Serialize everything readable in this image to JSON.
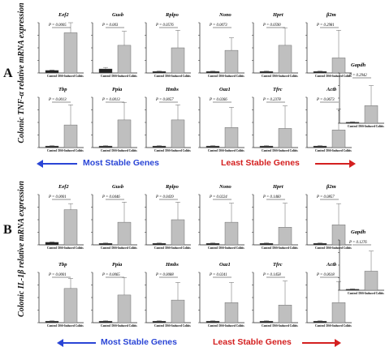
{
  "panels": [
    {
      "letter": "A",
      "ylabel": "Colonic TNF-α relative mRNA expression",
      "legend": {
        "left": "Most Stable Genes",
        "right": "Least Stable Genes"
      }
    },
    {
      "letter": "B",
      "ylabel": "Colonic IL-1β relative mRNA expression",
      "legend": {
        "left": "Most Stable Genes",
        "right": "Least Stable Genes"
      }
    }
  ],
  "chart_data": [
    {
      "type": "bar",
      "panel": "A",
      "gene": "Eef2",
      "p": "P = 0.0005",
      "categories": [
        "Control",
        "DSS-Induced Colitis"
      ],
      "values": [
        0.05,
        0.8
      ],
      "errors": [
        0.01,
        0.22
      ]
    },
    {
      "type": "bar",
      "panel": "A",
      "gene": "Gusb",
      "p": "P = 0.003",
      "categories": [
        "Control",
        "DSS-Induced Colitis"
      ],
      "values": [
        0.08,
        0.55
      ],
      "errors": [
        0.03,
        0.28
      ]
    },
    {
      "type": "bar",
      "panel": "A",
      "gene": "Rplpo",
      "p": "P = 0.0576",
      "categories": [
        "Control",
        "DSS-Induced Colitis"
      ],
      "values": [
        0.03,
        0.5
      ],
      "errors": [
        0.01,
        0.35
      ]
    },
    {
      "type": "bar",
      "panel": "A",
      "gene": "Nono",
      "p": "P = 0.0073",
      "categories": [
        "Control",
        "DSS-Induced Colitis"
      ],
      "values": [
        0.03,
        0.45
      ],
      "errors": [
        0.01,
        0.25
      ]
    },
    {
      "type": "bar",
      "panel": "A",
      "gene": "Hprt",
      "p": "P = 0.0590",
      "categories": [
        "Control",
        "DSS-Induced Colitis"
      ],
      "values": [
        0.03,
        0.55
      ],
      "errors": [
        0.01,
        0.35
      ]
    },
    {
      "type": "bar",
      "panel": "A",
      "gene": "β2m",
      "p": "P = 0.2981",
      "categories": [
        "Control",
        "DSS-Induced Colitis"
      ],
      "values": [
        0.03,
        0.3
      ],
      "errors": [
        0.01,
        0.55
      ]
    },
    {
      "type": "bar",
      "panel": "A",
      "gene": "Tbp",
      "p": "P = 0.0013",
      "categories": [
        "Control",
        "DSS-Induced Colitis"
      ],
      "values": [
        0.03,
        0.45
      ],
      "errors": [
        0.01,
        0.4
      ]
    },
    {
      "type": "bar",
      "panel": "A",
      "gene": "Ppia",
      "p": "P = 0.0013",
      "categories": [
        "Control",
        "DSS-Induced Colitis"
      ],
      "values": [
        0.03,
        0.55
      ],
      "errors": [
        0.01,
        0.35
      ]
    },
    {
      "type": "bar",
      "panel": "A",
      "gene": "Hmbs",
      "p": "P = 0.0057",
      "categories": [
        "Control",
        "DSS-Induced Colitis"
      ],
      "values": [
        0.03,
        0.55
      ],
      "errors": [
        0.01,
        0.3
      ]
    },
    {
      "type": "bar",
      "panel": "A",
      "gene": "Oaz1",
      "p": "P = 0.0266",
      "categories": [
        "Control",
        "DSS-Induced Colitis"
      ],
      "values": [
        0.03,
        0.4
      ],
      "errors": [
        0.01,
        0.4
      ]
    },
    {
      "type": "bar",
      "panel": "A",
      "gene": "Tfrc",
      "p": "P = 0.2378",
      "categories": [
        "Control",
        "DSS-Induced Colitis"
      ],
      "values": [
        0.03,
        0.38
      ],
      "errors": [
        0.01,
        0.45
      ]
    },
    {
      "type": "bar",
      "panel": "A",
      "gene": "Actb",
      "p": "P = 0.0673",
      "categories": [
        "Control",
        "DSS-Induced Colitis"
      ],
      "values": [
        0.03,
        0.35
      ],
      "errors": [
        0.01,
        0.42
      ]
    },
    {
      "type": "bar",
      "panel": "A",
      "gene": "Gapdh",
      "p": "P = 0.2942",
      "categories": [
        "Control",
        "DSS-Induced Colitis"
      ],
      "values": [
        0.02,
        0.35
      ],
      "errors": [
        0.01,
        0.4
      ]
    },
    {
      "type": "bar",
      "panel": "B",
      "gene": "Eef2",
      "p": "P = 0.0001",
      "categories": [
        "Control",
        "DSS-Induced Colitis"
      ],
      "values": [
        0.05,
        0.7
      ],
      "errors": [
        0.01,
        0.12
      ]
    },
    {
      "type": "bar",
      "panel": "B",
      "gene": "Gusb",
      "p": "P = 0.0446",
      "categories": [
        "Control",
        "DSS-Induced Colitis"
      ],
      "values": [
        0.03,
        0.45
      ],
      "errors": [
        0.01,
        0.4
      ]
    },
    {
      "type": "bar",
      "panel": "B",
      "gene": "Rplpo",
      "p": "P = 0.0439",
      "categories": [
        "Control",
        "DSS-Induced Colitis"
      ],
      "values": [
        0.03,
        0.5
      ],
      "errors": [
        0.01,
        0.35
      ]
    },
    {
      "type": "bar",
      "panel": "B",
      "gene": "Nono",
      "p": "P = 0.0224",
      "categories": [
        "Control",
        "DSS-Induced Colitis"
      ],
      "values": [
        0.03,
        0.45
      ],
      "errors": [
        0.01,
        0.38
      ]
    },
    {
      "type": "bar",
      "panel": "B",
      "gene": "Hprt",
      "p": "P = 0.1460",
      "categories": [
        "Control",
        "DSS-Induced Colitis"
      ],
      "values": [
        0.03,
        0.35
      ],
      "errors": [
        0.01,
        0.48
      ]
    },
    {
      "type": "bar",
      "panel": "B",
      "gene": "β2m",
      "p": "P = 0.0857",
      "categories": [
        "Control",
        "DSS-Induced Colitis"
      ],
      "values": [
        0.03,
        0.4
      ],
      "errors": [
        0.01,
        0.42
      ]
    },
    {
      "type": "bar",
      "panel": "B",
      "gene": "Tbp",
      "p": "P = 0.0001",
      "categories": [
        "Control",
        "DSS-Induced Colitis"
      ],
      "values": [
        0.03,
        0.68
      ],
      "errors": [
        0.01,
        0.2
      ]
    },
    {
      "type": "bar",
      "panel": "B",
      "gene": "Ppia",
      "p": "P = 0.0065",
      "categories": [
        "Control",
        "DSS-Induced Colitis"
      ],
      "values": [
        0.03,
        0.55
      ],
      "errors": [
        0.01,
        0.35
      ]
    },
    {
      "type": "bar",
      "panel": "B",
      "gene": "Hmbs",
      "p": "P = 0.0088",
      "categories": [
        "Control",
        "DSS-Induced Colitis"
      ],
      "values": [
        0.03,
        0.45
      ],
      "errors": [
        0.01,
        0.35
      ]
    },
    {
      "type": "bar",
      "panel": "B",
      "gene": "Oaz1",
      "p": "P = 0.0241",
      "categories": [
        "Control",
        "DSS-Induced Colitis"
      ],
      "values": [
        0.03,
        0.4
      ],
      "errors": [
        0.01,
        0.4
      ]
    },
    {
      "type": "bar",
      "panel": "B",
      "gene": "Tfrc",
      "p": "P = 0.1458",
      "categories": [
        "Control",
        "DSS-Induced Colitis"
      ],
      "values": [
        0.03,
        0.35
      ],
      "errors": [
        0.01,
        0.48
      ]
    },
    {
      "type": "bar",
      "panel": "B",
      "gene": "Actb",
      "p": "P = 0.0618",
      "categories": [
        "Control",
        "DSS-Induced Colitis"
      ],
      "values": [
        0.03,
        0.4
      ],
      "errors": [
        0.01,
        0.42
      ]
    },
    {
      "type": "bar",
      "panel": "B",
      "gene": "Gapdh",
      "p": "P = 0.1276",
      "categories": [
        "Control",
        "DSS-Induced Colitis"
      ],
      "values": [
        0.02,
        0.38
      ],
      "errors": [
        0.01,
        0.4
      ]
    }
  ],
  "colors": {
    "bar_dss": "#bfbfbf",
    "bar_control": "#222222",
    "axis": "#222222",
    "stable": "#2a45d6",
    "least": "#d42020"
  }
}
